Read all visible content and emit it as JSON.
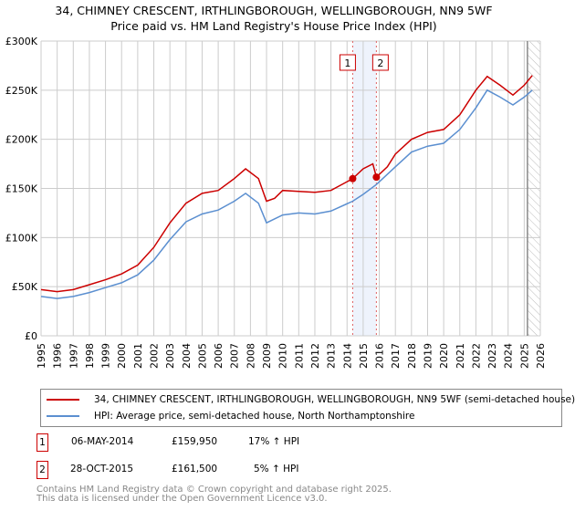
{
  "chart_data": {
    "type": "line",
    "title": "34, CHIMNEY CRESCENT, IRTHLINGBOROUGH, WELLINGBOROUGH, NN9 5WF",
    "subtitle": "Price paid vs. HM Land Registry's House Price Index (HPI)",
    "xlim": [
      1995,
      2026
    ],
    "ylim": [
      0,
      300000
    ],
    "x_ticks": [
      "1995",
      "1996",
      "1997",
      "1998",
      "1999",
      "2000",
      "2001",
      "2002",
      "2003",
      "2004",
      "2005",
      "2006",
      "2007",
      "2008",
      "2009",
      "2010",
      "2011",
      "2012",
      "2013",
      "2014",
      "2015",
      "2016",
      "2017",
      "2018",
      "2019",
      "2020",
      "2021",
      "2022",
      "2023",
      "2024",
      "2025",
      "2026"
    ],
    "y_ticks": [
      {
        "v": 0,
        "label": "£0"
      },
      {
        "v": 50000,
        "label": "£50K"
      },
      {
        "v": 100000,
        "label": "£100K"
      },
      {
        "v": 150000,
        "label": "£150K"
      },
      {
        "v": 200000,
        "label": "£200K"
      },
      {
        "v": 250000,
        "label": "£250K"
      },
      {
        "v": 300000,
        "label": "£300K"
      }
    ],
    "grid": true,
    "series": [
      {
        "name": "34, CHIMNEY CRESCENT, IRTHLINGBOROUGH, WELLINGBOROUGH, NN9 5WF (semi-detached house)",
        "color": "#cc0000",
        "x": [
          1995,
          1996,
          1997,
          1998,
          1999,
          2000,
          2001,
          2002,
          2003,
          2004,
          2005,
          2006,
          2007,
          2007.7,
          2008.5,
          2009,
          2009.5,
          2010,
          2011,
          2012,
          2013,
          2014.35,
          2015,
          2015.6,
          2015.82,
          2016.5,
          2017,
          2018,
          2019,
          2020,
          2021,
          2022,
          2022.7,
          2023.5,
          2024.3,
          2025,
          2025.5
        ],
        "y": [
          47000,
          45000,
          47000,
          52000,
          57000,
          63000,
          72000,
          90000,
          115000,
          135000,
          145000,
          148000,
          160000,
          170000,
          160000,
          137000,
          140000,
          148000,
          147000,
          146000,
          148000,
          159950,
          170000,
          175000,
          161500,
          172000,
          185000,
          200000,
          207000,
          210000,
          225000,
          250000,
          264000,
          255000,
          245000,
          255000,
          265000
        ]
      },
      {
        "name": "HPI: Average price, semi-detached house, North Northamptonshire",
        "color": "#5b8fd0",
        "x": [
          1995,
          1996,
          1997,
          1998,
          1999,
          2000,
          2001,
          2002,
          2003,
          2004,
          2005,
          2006,
          2007,
          2007.7,
          2008.5,
          2009,
          2010,
          2011,
          2012,
          2013,
          2014.35,
          2015,
          2015.82,
          2017,
          2018,
          2019,
          2020,
          2021,
          2022,
          2022.7,
          2023.5,
          2024.3,
          2025,
          2025.5
        ],
        "y": [
          40000,
          38000,
          40000,
          44000,
          49000,
          54000,
          62000,
          77000,
          98000,
          116000,
          124000,
          128000,
          137000,
          145000,
          135000,
          115000,
          123000,
          125000,
          124000,
          127000,
          137000,
          144000,
          154000,
          172000,
          187000,
          193000,
          196000,
          210000,
          232000,
          250000,
          243000,
          235000,
          243000,
          250000
        ]
      }
    ],
    "sales": [
      {
        "label": "1",
        "x": 2014.35,
        "y": 159950,
        "date": "06-MAY-2014",
        "price": "£159,950",
        "hpi": "17% ↑ HPI"
      },
      {
        "label": "2",
        "x": 2015.82,
        "y": 161500,
        "date": "28-OCT-2015",
        "price": "£161,500",
        "hpi": "5% ↑ HPI"
      }
    ],
    "forecast_start": 2025.2,
    "legend_position": "below"
  },
  "footer": [
    "Contains HM Land Registry data © Crown copyright and database right 2025.",
    "This data is licensed under the Open Government Licence v3.0."
  ]
}
